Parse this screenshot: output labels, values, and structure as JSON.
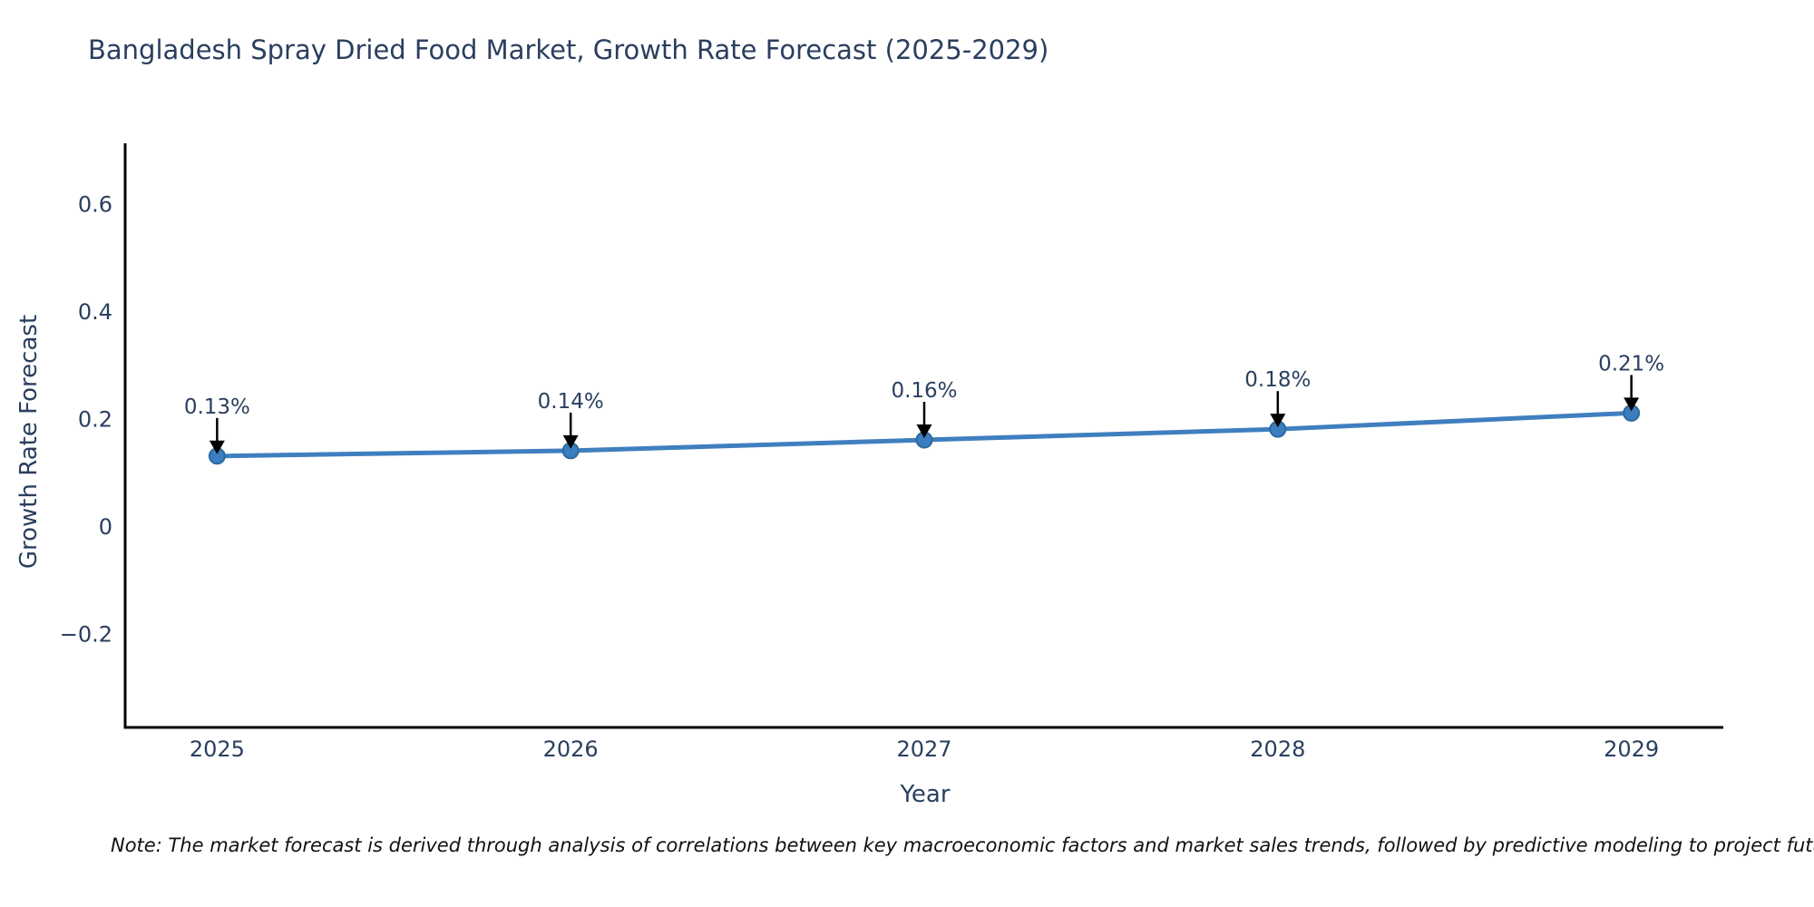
{
  "note": "Note: The market forecast is derived through analysis of correlations between key macroeconomic factors and market sales trends, followed by predictive modeling to project future sa",
  "chart_data": {
    "type": "line",
    "title": "Bangladesh Spray Dried Food Market, Growth Rate Forecast (2025-2029)",
    "xlabel": "Year",
    "ylabel": "Growth Rate Forecast",
    "x": [
      2025,
      2026,
      2027,
      2028,
      2029
    ],
    "values": [
      0.13,
      0.14,
      0.16,
      0.18,
      0.21
    ],
    "point_labels": [
      "0.13%",
      "0.14%",
      "0.16%",
      "0.18%",
      "0.21%"
    ],
    "xtick_labels": [
      "2025",
      "2026",
      "2027",
      "2028",
      "2029"
    ],
    "yticks": [
      -0.2,
      0,
      0.2,
      0.4,
      0.6
    ],
    "ytick_labels": [
      "−0.2",
      "0",
      "0.2",
      "0.4",
      "0.6"
    ],
    "xlim": [
      2024.74,
      2029.26
    ],
    "ylim": [
      -0.375,
      0.712
    ],
    "grid": false,
    "legend": false,
    "line_color": "#3f7fbf",
    "marker_color": "#3a7ebf",
    "marker_edge_color": "#2d6a9f",
    "annotation_color": "#2a3f5f",
    "arrow_color": "#000000",
    "axis_color": "#000000",
    "tick_color": "#2a3f5f"
  }
}
